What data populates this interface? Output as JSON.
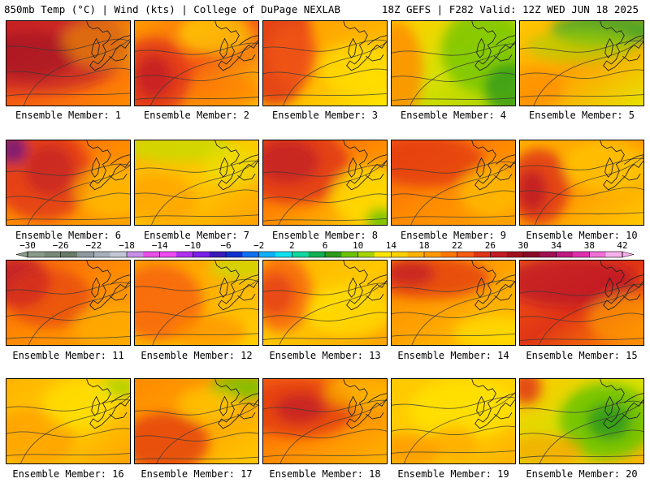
{
  "header": {
    "left": "850mb Temp (°C) | Wind (kts) | College of DuPage NEXLAB",
    "right": "18Z GEFS | F282 Valid: 12Z WED JUN 18 2025"
  },
  "member_label_prefix": "Ensemble Member:",
  "members": [
    {
      "number": "1",
      "palette": [
        "#e03515",
        "#f55c13",
        "#ff8a00"
      ],
      "blobs": [
        [
          0.25,
          0.3,
          0.75,
          0.55,
          "#b8162b",
          0.6
        ],
        [
          0.2,
          0.4,
          0.35,
          0.28,
          "#9a0f22",
          0.55
        ],
        [
          0.85,
          0.25,
          0.4,
          0.3,
          "#f0b100",
          0.45
        ]
      ]
    },
    {
      "number": "2",
      "palette": [
        "#ff9a00",
        "#f55c13",
        "#ffd000"
      ],
      "blobs": [
        [
          0.15,
          0.65,
          0.3,
          0.45,
          "#e03515",
          0.8
        ],
        [
          0.15,
          0.65,
          0.15,
          0.25,
          "#b8162b",
          0.6
        ],
        [
          0.65,
          0.15,
          0.3,
          0.25,
          "#ffe600",
          0.6
        ],
        [
          0.75,
          0.85,
          0.3,
          0.2,
          "#ff7700",
          0.6
        ]
      ]
    },
    {
      "number": "3",
      "palette": [
        "#ff9a00",
        "#ffb200",
        "#ffe600"
      ],
      "blobs": [
        [
          0.1,
          0.3,
          0.3,
          0.7,
          "#e03515",
          0.85
        ],
        [
          0.25,
          0.4,
          0.2,
          0.35,
          "#f55c13",
          0.6
        ],
        [
          0.75,
          0.55,
          0.3,
          0.3,
          "#ffe600",
          0.6
        ]
      ]
    },
    {
      "number": "4",
      "palette": [
        "#ffd000",
        "#d8e000",
        "#a8d400"
      ],
      "blobs": [
        [
          0.05,
          0.6,
          0.2,
          0.6,
          "#ff8a00",
          0.8
        ],
        [
          0.75,
          0.35,
          0.35,
          0.5,
          "#6ec300",
          0.75
        ],
        [
          0.95,
          0.8,
          0.2,
          0.3,
          "#2e9a1a",
          0.8
        ]
      ]
    },
    {
      "number": "5",
      "palette": [
        "#ffc800",
        "#ffa200",
        "#e8e200"
      ],
      "blobs": [
        [
          0.7,
          0.1,
          0.45,
          0.2,
          "#3aa52a",
          0.85
        ],
        [
          0.5,
          0.3,
          0.45,
          0.2,
          "#a8d400",
          0.6
        ],
        [
          0.1,
          0.8,
          0.25,
          0.25,
          "#ff8a00",
          0.6
        ]
      ]
    },
    {
      "number": "6",
      "palette": [
        "#f55c13",
        "#ff8a00",
        "#ffa200"
      ],
      "blobs": [
        [
          0.3,
          0.4,
          0.4,
          0.55,
          "#e03515",
          0.8
        ],
        [
          0.05,
          0.1,
          0.12,
          0.18,
          "#7a1a7a",
          0.9
        ],
        [
          0.35,
          0.35,
          0.2,
          0.3,
          "#b8162b",
          0.55
        ],
        [
          0.85,
          0.6,
          0.3,
          0.3,
          "#ffc800",
          0.6
        ]
      ]
    },
    {
      "number": "7",
      "palette": [
        "#ffb200",
        "#ffc800",
        "#ffa200"
      ],
      "blobs": [
        [
          0.35,
          0.08,
          0.45,
          0.18,
          "#c8dc00",
          0.8
        ],
        [
          0.8,
          0.3,
          0.25,
          0.25,
          "#e8e200",
          0.6
        ],
        [
          0.2,
          0.7,
          0.3,
          0.3,
          "#ff9a00",
          0.6
        ]
      ]
    },
    {
      "number": "8",
      "palette": [
        "#f55c13",
        "#ff8a00",
        "#ffd000"
      ],
      "blobs": [
        [
          0.25,
          0.3,
          0.45,
          0.45,
          "#e03515",
          0.85
        ],
        [
          0.2,
          0.25,
          0.25,
          0.25,
          "#b8162b",
          0.6
        ],
        [
          0.85,
          0.65,
          0.3,
          0.35,
          "#ffe600",
          0.7
        ],
        [
          0.95,
          0.95,
          0.12,
          0.15,
          "#6ec300",
          0.9
        ]
      ]
    },
    {
      "number": "9",
      "palette": [
        "#f55c13",
        "#ff8a00",
        "#ffa200"
      ],
      "blobs": [
        [
          0.3,
          0.25,
          0.45,
          0.3,
          "#e03515",
          0.75
        ],
        [
          0.8,
          0.6,
          0.25,
          0.3,
          "#ffc800",
          0.6
        ]
      ]
    },
    {
      "number": "10",
      "palette": [
        "#ffb200",
        "#ff9a00",
        "#ffc800"
      ],
      "blobs": [
        [
          0.15,
          0.55,
          0.25,
          0.45,
          "#e03515",
          0.85
        ],
        [
          0.1,
          0.6,
          0.12,
          0.25,
          "#b8162b",
          0.7
        ],
        [
          0.7,
          0.3,
          0.35,
          0.3,
          "#ffd000",
          0.6
        ]
      ]
    },
    {
      "number": "11",
      "palette": [
        "#f55c13",
        "#ff8a00",
        "#ffa200"
      ],
      "blobs": [
        [
          0.1,
          0.25,
          0.25,
          0.3,
          "#b8162b",
          0.75
        ],
        [
          0.35,
          0.45,
          0.35,
          0.35,
          "#e03515",
          0.6
        ],
        [
          0.85,
          0.8,
          0.3,
          0.3,
          "#ffb200",
          0.6
        ]
      ]
    },
    {
      "number": "12",
      "palette": [
        "#ff9a00",
        "#ffb200",
        "#ffd000"
      ],
      "blobs": [
        [
          0.2,
          0.5,
          0.35,
          0.45,
          "#f55c13",
          0.75
        ],
        [
          0.85,
          0.08,
          0.25,
          0.15,
          "#c8dc00",
          0.75
        ],
        [
          0.6,
          0.85,
          0.3,
          0.2,
          "#ff8a00",
          0.6
        ]
      ]
    },
    {
      "number": "13",
      "palette": [
        "#ffb200",
        "#ffc800",
        "#ffa200"
      ],
      "blobs": [
        [
          0.15,
          0.4,
          0.25,
          0.45,
          "#f55c13",
          0.75
        ],
        [
          0.1,
          0.4,
          0.15,
          0.25,
          "#e03515",
          0.65
        ],
        [
          0.7,
          0.6,
          0.35,
          0.3,
          "#ffe600",
          0.6
        ]
      ]
    },
    {
      "number": "14",
      "palette": [
        "#ff8a00",
        "#ffa200",
        "#ffc800"
      ],
      "blobs": [
        [
          0.3,
          0.2,
          0.5,
          0.25,
          "#e03515",
          0.75
        ],
        [
          0.15,
          0.15,
          0.2,
          0.15,
          "#b8162b",
          0.6
        ],
        [
          0.8,
          0.85,
          0.3,
          0.2,
          "#ffe600",
          0.6
        ]
      ]
    },
    {
      "number": "15",
      "palette": [
        "#f55c13",
        "#e03515",
        "#ff8a00"
      ],
      "blobs": [
        [
          0.4,
          0.25,
          0.55,
          0.3,
          "#b8162b",
          0.7
        ],
        [
          0.85,
          0.7,
          0.3,
          0.3,
          "#ffa200",
          0.6
        ]
      ]
    },
    {
      "number": "16",
      "palette": [
        "#ffb200",
        "#ffd000",
        "#ffa200"
      ],
      "blobs": [
        [
          0.2,
          0.7,
          0.35,
          0.35,
          "#ff9a00",
          0.7
        ],
        [
          0.9,
          0.1,
          0.15,
          0.12,
          "#a8d400",
          0.85
        ],
        [
          0.6,
          0.3,
          0.3,
          0.3,
          "#ffe600",
          0.6
        ]
      ]
    },
    {
      "number": "17",
      "palette": [
        "#ff8a00",
        "#ffa200",
        "#ffc800"
      ],
      "blobs": [
        [
          0.25,
          0.75,
          0.35,
          0.35,
          "#e03515",
          0.75
        ],
        [
          0.85,
          0.1,
          0.25,
          0.15,
          "#6ec300",
          0.8
        ],
        [
          0.6,
          0.3,
          0.25,
          0.2,
          "#ffd000",
          0.6
        ]
      ]
    },
    {
      "number": "18",
      "palette": [
        "#f55c13",
        "#ff8a00",
        "#ffb200"
      ],
      "blobs": [
        [
          0.3,
          0.35,
          0.45,
          0.35,
          "#e03515",
          0.75
        ],
        [
          0.3,
          0.35,
          0.2,
          0.18,
          "#b8162b",
          0.6
        ],
        [
          0.8,
          0.15,
          0.3,
          0.2,
          "#ffc800",
          0.6
        ]
      ]
    },
    {
      "number": "19",
      "palette": [
        "#ffc800",
        "#ffd000",
        "#ffb200"
      ],
      "blobs": [
        [
          0.6,
          0.35,
          0.45,
          0.35,
          "#ffe600",
          0.7
        ],
        [
          0.1,
          0.85,
          0.3,
          0.2,
          "#ff8a00",
          0.65
        ],
        [
          0.5,
          0.75,
          0.2,
          0.2,
          "#ffa200",
          0.6
        ]
      ]
    },
    {
      "number": "20",
      "palette": [
        "#ffc800",
        "#d8e000",
        "#ffb200"
      ],
      "blobs": [
        [
          0.7,
          0.5,
          0.38,
          0.45,
          "#6ec300",
          0.9
        ],
        [
          0.72,
          0.5,
          0.18,
          0.22,
          "#2e9a1a",
          0.85
        ],
        [
          0.05,
          0.1,
          0.12,
          0.2,
          "#e03515",
          0.85
        ],
        [
          0.2,
          0.85,
          0.3,
          0.2,
          "#ff9a00",
          0.6
        ]
      ]
    }
  ],
  "colorbar": {
    "labels": [
      "−30",
      "−26",
      "−22",
      "−18",
      "−14",
      "−10",
      "−6",
      "−2",
      "2",
      "6",
      "10",
      "14",
      "18",
      "22",
      "26",
      "30",
      "34",
      "38",
      "42"
    ],
    "colors": [
      "#8a9a8a",
      "#788878",
      "#687a68",
      "#8f9aa0",
      "#a7b0ba",
      "#c2c8d6",
      "#c88ee8",
      "#e84ee8",
      "#ee4bf0",
      "#b030f0",
      "#7a20e8",
      "#3a1ab8",
      "#1030d0",
      "#1070f0",
      "#10b0f8",
      "#10e0f0",
      "#10d8a0",
      "#10b050",
      "#2e9a1a",
      "#6ec300",
      "#a8d400",
      "#ffe600",
      "#ffd000",
      "#ffb200",
      "#ff9a00",
      "#ff7700",
      "#f55c13",
      "#e03515",
      "#c41b23",
      "#a0101e",
      "#8a0a28",
      "#a01050",
      "#c01880",
      "#e030b0",
      "#f070d8",
      "#f8b0ec"
    ]
  }
}
